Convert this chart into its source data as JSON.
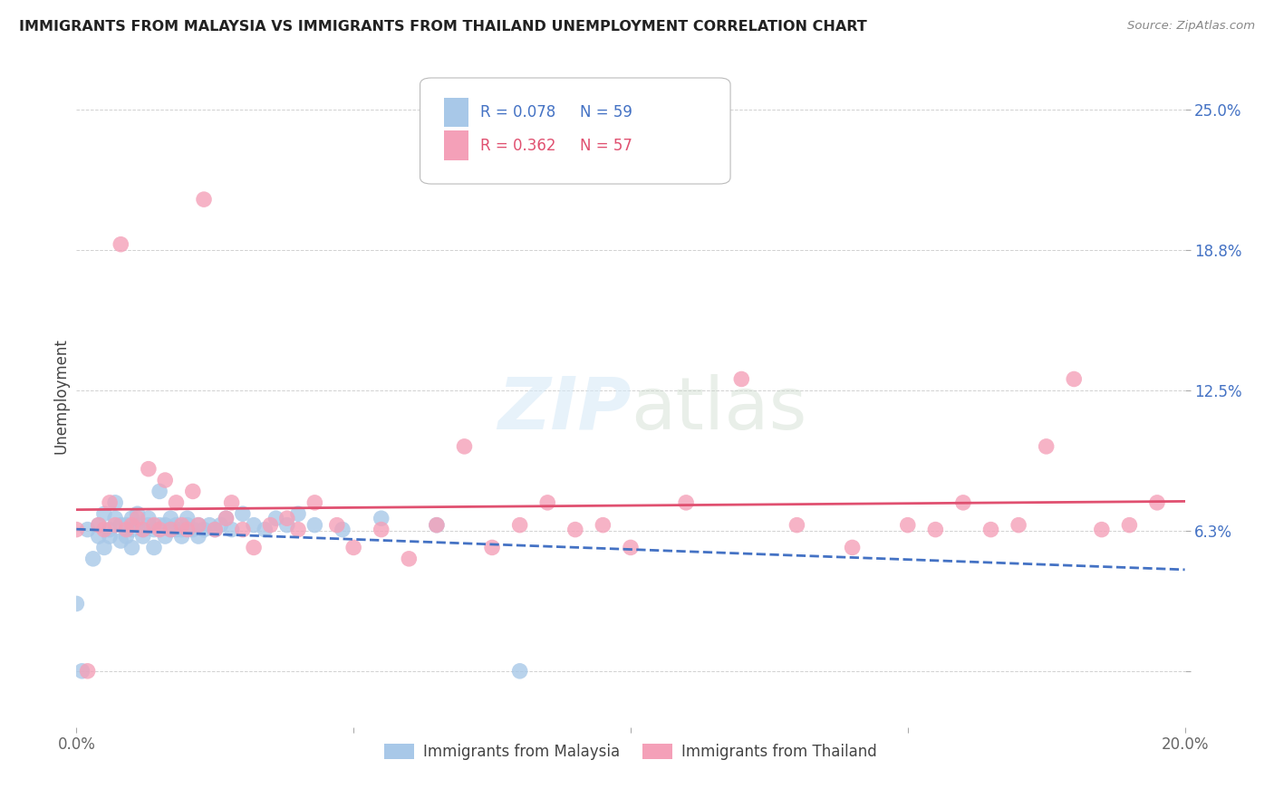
{
  "title": "IMMIGRANTS FROM MALAYSIA VS IMMIGRANTS FROM THAILAND UNEMPLOYMENT CORRELATION CHART",
  "source": "Source: ZipAtlas.com",
  "ylabel": "Unemployment",
  "yticks": [
    0.0,
    0.0625,
    0.125,
    0.1875,
    0.25
  ],
  "ytick_labels": [
    "",
    "6.3%",
    "12.5%",
    "18.8%",
    "25.0%"
  ],
  "xlim": [
    0.0,
    0.2
  ],
  "ylim": [
    -0.025,
    0.27
  ],
  "legend_r1": "0.078",
  "legend_n1": "59",
  "legend_r2": "0.362",
  "legend_n2": "57",
  "color_malaysia": "#a8c8e8",
  "color_thailand": "#f4a0b8",
  "color_line_malaysia": "#4472c4",
  "color_line_thailand": "#e05070",
  "malaysia_x": [
    0.0,
    0.001,
    0.002,
    0.003,
    0.004,
    0.004,
    0.005,
    0.005,
    0.006,
    0.006,
    0.007,
    0.007,
    0.008,
    0.008,
    0.009,
    0.009,
    0.01,
    0.01,
    0.01,
    0.011,
    0.011,
    0.012,
    0.012,
    0.013,
    0.013,
    0.014,
    0.014,
    0.015,
    0.015,
    0.016,
    0.016,
    0.017,
    0.017,
    0.018,
    0.018,
    0.019,
    0.019,
    0.02,
    0.02,
    0.021,
    0.022,
    0.022,
    0.023,
    0.024,
    0.025,
    0.026,
    0.027,
    0.028,
    0.03,
    0.032,
    0.034,
    0.036,
    0.038,
    0.04,
    0.043,
    0.048,
    0.055,
    0.065,
    0.08
  ],
  "malaysia_y": [
    0.03,
    0.0,
    0.063,
    0.05,
    0.065,
    0.06,
    0.055,
    0.07,
    0.06,
    0.063,
    0.068,
    0.075,
    0.058,
    0.065,
    0.06,
    0.065,
    0.063,
    0.068,
    0.055,
    0.065,
    0.07,
    0.06,
    0.063,
    0.065,
    0.068,
    0.055,
    0.063,
    0.065,
    0.08,
    0.06,
    0.065,
    0.068,
    0.063,
    0.065,
    0.063,
    0.06,
    0.063,
    0.068,
    0.065,
    0.063,
    0.065,
    0.06,
    0.063,
    0.065,
    0.063,
    0.065,
    0.068,
    0.063,
    0.07,
    0.065,
    0.063,
    0.068,
    0.065,
    0.07,
    0.065,
    0.063,
    0.068,
    0.065,
    0.0
  ],
  "thailand_x": [
    0.0,
    0.002,
    0.004,
    0.005,
    0.006,
    0.007,
    0.008,
    0.009,
    0.01,
    0.011,
    0.012,
    0.013,
    0.014,
    0.015,
    0.016,
    0.017,
    0.018,
    0.019,
    0.02,
    0.021,
    0.022,
    0.023,
    0.025,
    0.027,
    0.028,
    0.03,
    0.032,
    0.035,
    0.038,
    0.04,
    0.043,
    0.047,
    0.05,
    0.055,
    0.06,
    0.065,
    0.07,
    0.075,
    0.08,
    0.085,
    0.09,
    0.095,
    0.1,
    0.11,
    0.12,
    0.13,
    0.14,
    0.15,
    0.155,
    0.16,
    0.165,
    0.17,
    0.175,
    0.18,
    0.185,
    0.19,
    0.195
  ],
  "thailand_y": [
    0.063,
    0.0,
    0.065,
    0.063,
    0.075,
    0.065,
    0.19,
    0.063,
    0.065,
    0.068,
    0.063,
    0.09,
    0.065,
    0.063,
    0.085,
    0.063,
    0.075,
    0.065,
    0.063,
    0.08,
    0.065,
    0.21,
    0.063,
    0.068,
    0.075,
    0.063,
    0.055,
    0.065,
    0.068,
    0.063,
    0.075,
    0.065,
    0.055,
    0.063,
    0.05,
    0.065,
    0.1,
    0.055,
    0.065,
    0.075,
    0.063,
    0.065,
    0.055,
    0.075,
    0.13,
    0.065,
    0.055,
    0.065,
    0.063,
    0.075,
    0.063,
    0.065,
    0.1,
    0.13,
    0.063,
    0.065,
    0.075
  ]
}
